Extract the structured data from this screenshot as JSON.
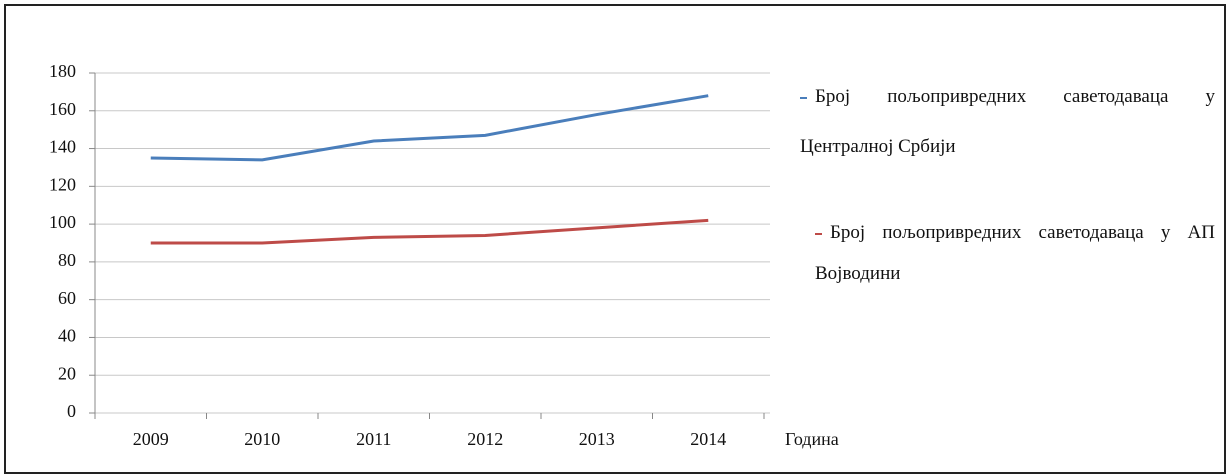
{
  "chart_data": {
    "type": "line",
    "categories": [
      "2009",
      "2010",
      "2011",
      "2012",
      "2013",
      "2014"
    ],
    "series": [
      {
        "name": "Број пољопривредних саветодаваца у Централној Србији",
        "color": "#4a7ebb",
        "values": [
          135,
          134,
          144,
          147,
          158,
          168
        ]
      },
      {
        "name": "Број пољопривредних саветодаваца у АП Војводини",
        "color": "#be4b48",
        "values": [
          90,
          90,
          93,
          94,
          98,
          102
        ]
      }
    ],
    "x_label": "Година",
    "ylim": [
      0,
      180
    ],
    "yticks": [
      0,
      20,
      40,
      60,
      80,
      100,
      120,
      140,
      160,
      180
    ],
    "grid": true
  }
}
